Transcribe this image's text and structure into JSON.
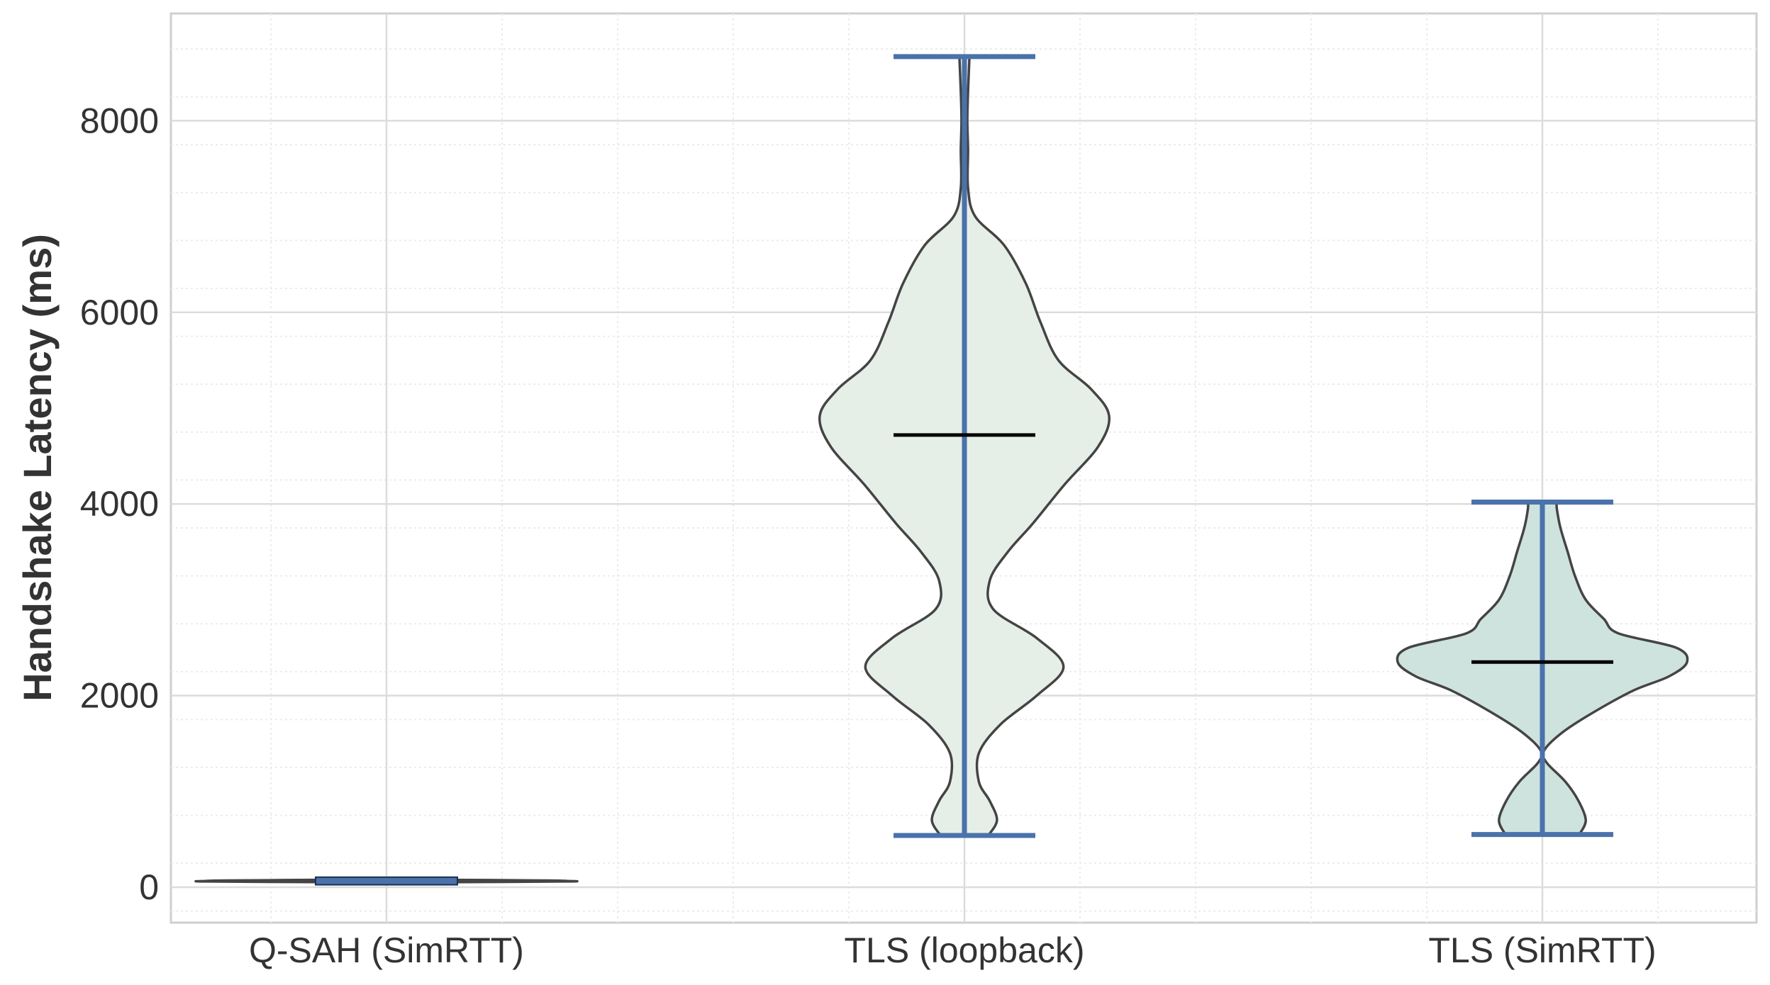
{
  "chart_data": {
    "type": "violin",
    "title": "",
    "xlabel": "",
    "ylabel": "Handshake Latency (ms)",
    "ylim": [
      -370,
      9120
    ],
    "yticks": [
      0,
      2000,
      4000,
      6000,
      8000
    ],
    "grid": true,
    "categories": [
      "Q-SAH (SimRTT)",
      "TLS (loopback)",
      "TLS (SimRTT)"
    ],
    "series": [
      {
        "category": "Q-SAH (SimRTT)",
        "min": 40,
        "max": 90,
        "median": 65,
        "fill_color": "#dfece4",
        "profile": [
          [
            52,
            0.8
          ],
          [
            60,
            2.5
          ],
          [
            65,
            2.5
          ],
          [
            70,
            2.2
          ],
          [
            78,
            0.6
          ]
        ]
      },
      {
        "category": "TLS (loopback)",
        "min": 540,
        "max": 8670,
        "median": 4720,
        "fill_color": "#e6efe7",
        "profile": [
          [
            540,
            0.33
          ],
          [
            700,
            0.45
          ],
          [
            900,
            0.35
          ],
          [
            1100,
            0.2
          ],
          [
            1400,
            0.2
          ],
          [
            1700,
            0.5
          ],
          [
            2000,
            1.0
          ],
          [
            2300,
            1.37
          ],
          [
            2600,
            1.0
          ],
          [
            2900,
            0.4
          ],
          [
            3200,
            0.35
          ],
          [
            3500,
            0.6
          ],
          [
            3800,
            0.95
          ],
          [
            4200,
            1.38
          ],
          [
            4600,
            1.85
          ],
          [
            4920,
            2.0
          ],
          [
            5200,
            1.75
          ],
          [
            5500,
            1.3
          ],
          [
            5900,
            1.05
          ],
          [
            6300,
            0.85
          ],
          [
            6700,
            0.55
          ],
          [
            7000,
            0.15
          ],
          [
            7300,
            0.05
          ],
          [
            7700,
            0.05
          ],
          [
            8000,
            0.04
          ],
          [
            8300,
            0.05
          ],
          [
            8670,
            0.07
          ]
        ]
      },
      {
        "category": "TLS (SimRTT)",
        "min": 550,
        "max": 4020,
        "median": 2350,
        "fill_color": "#cfe3de",
        "profile": [
          [
            560,
            0.52
          ],
          [
            700,
            0.6
          ],
          [
            900,
            0.5
          ],
          [
            1100,
            0.32
          ],
          [
            1300,
            0.06
          ],
          [
            1420,
            0.02
          ],
          [
            1600,
            0.25
          ],
          [
            1800,
            0.65
          ],
          [
            2050,
            1.25
          ],
          [
            2200,
            1.75
          ],
          [
            2350,
            2.0
          ],
          [
            2500,
            1.85
          ],
          [
            2650,
            1.05
          ],
          [
            2800,
            0.85
          ],
          [
            3000,
            0.6
          ],
          [
            3250,
            0.45
          ],
          [
            3500,
            0.35
          ],
          [
            3750,
            0.25
          ],
          [
            3950,
            0.2
          ],
          [
            4020,
            0.2
          ]
        ]
      }
    ]
  }
}
